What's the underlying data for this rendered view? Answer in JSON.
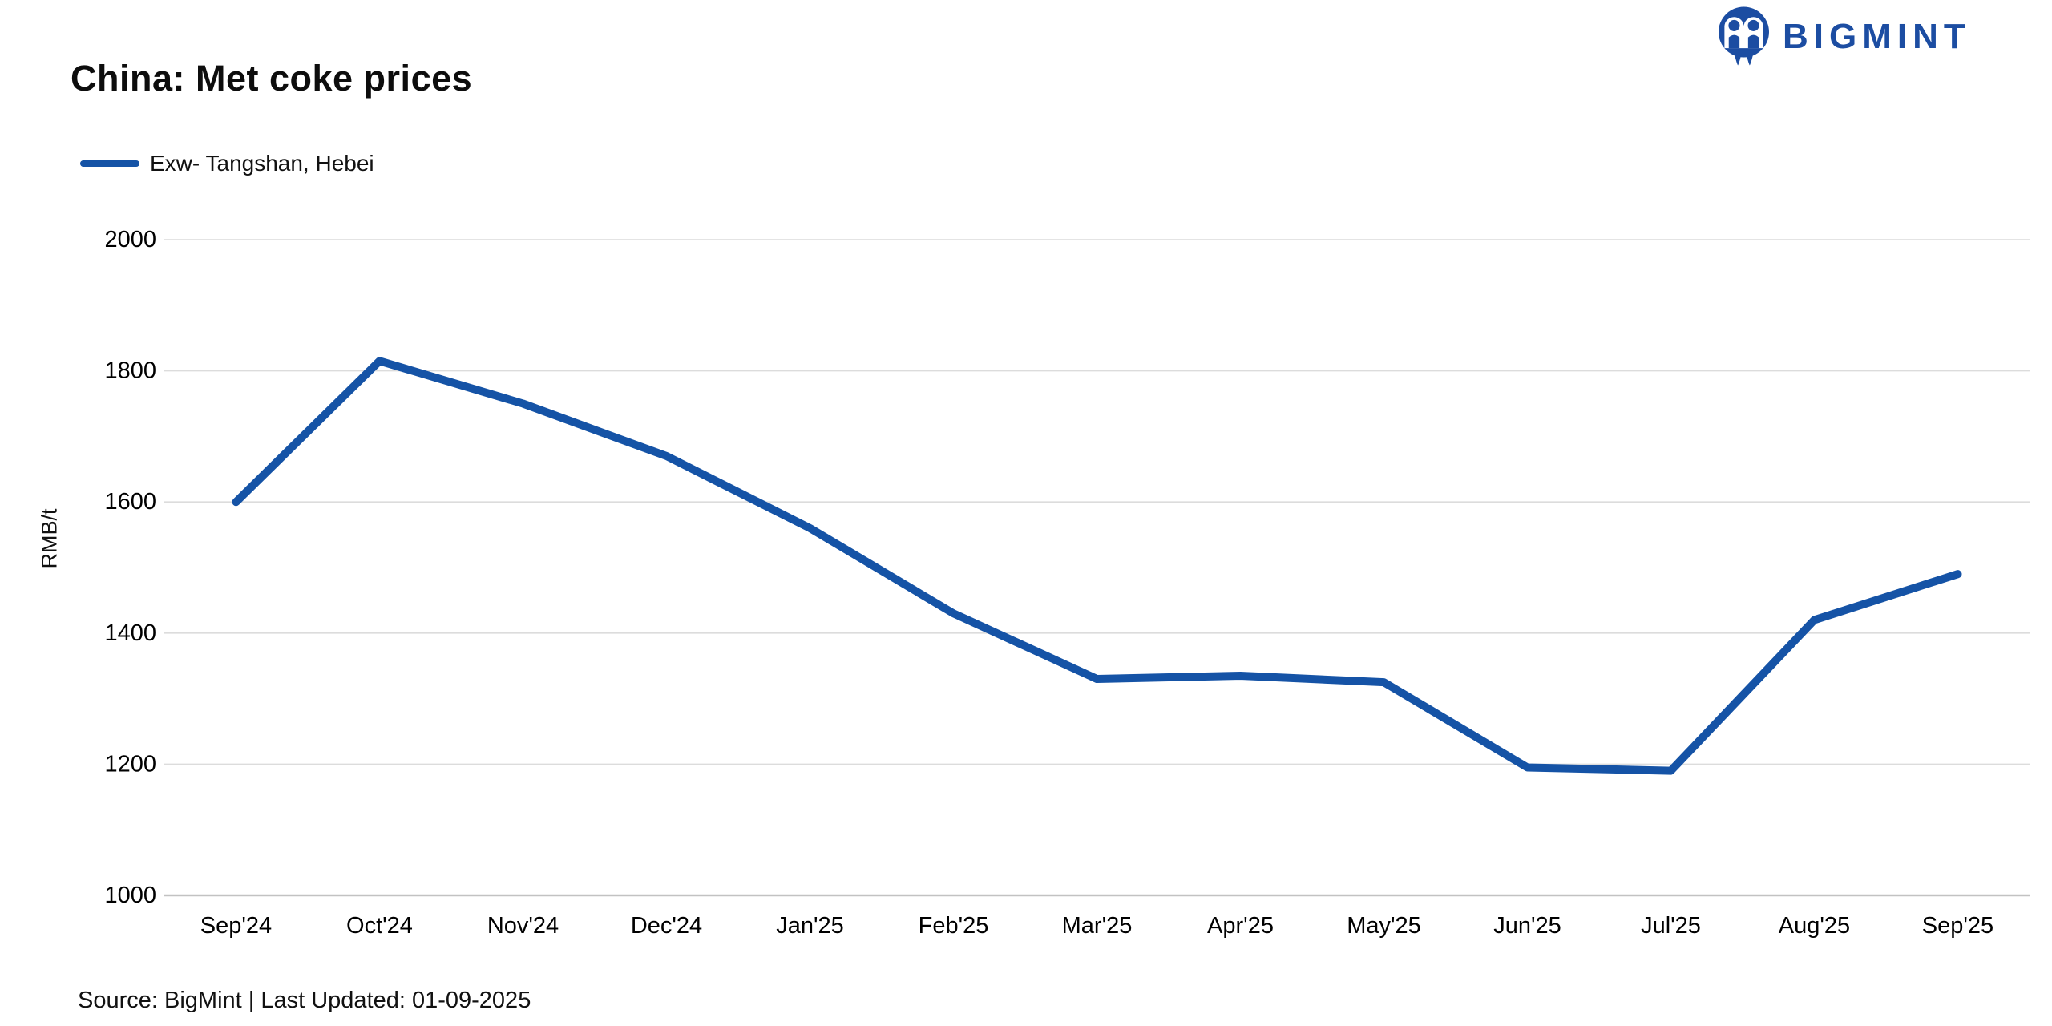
{
  "header": {
    "logo_text": "BIGMINT"
  },
  "title": "China: Met coke prices",
  "legend": {
    "series_label": "Exw- Tangshan, Hebei"
  },
  "footer": {
    "source_text": "Source: BigMint | Last Updated: 01-09-2025"
  },
  "colors": {
    "line": "#1553A6",
    "logo": "#1C4DA2",
    "gridline": "#DCDCDC",
    "axis_line": "#C2C2C2",
    "tick_text": "#000000"
  },
  "chart_data": {
    "type": "line",
    "title": "China: Met coke prices",
    "xlabel": "",
    "ylabel": "RMB/t",
    "categories": [
      "Sep'24",
      "Oct'24",
      "Nov'24",
      "Dec'24",
      "Jan'25",
      "Feb'25",
      "Mar'25",
      "Apr'25",
      "May'25",
      "Jun'25",
      "Jul'25",
      "Aug'25",
      "Sep'25"
    ],
    "series": [
      {
        "name": "Exw- Tangshan, Hebei",
        "color": "#1553A6",
        "values": [
          1600,
          1815,
          1750,
          1670,
          1560,
          1430,
          1330,
          1335,
          1325,
          1195,
          1190,
          1420,
          1490
        ]
      }
    ],
    "ylim": [
      1000,
      2000
    ],
    "ytick_step": 200,
    "grid": "horizontal",
    "legend_position": "top-left"
  }
}
